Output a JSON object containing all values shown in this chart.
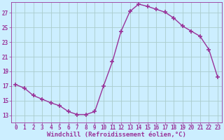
{
  "x": [
    0,
    1,
    2,
    3,
    4,
    5,
    6,
    7,
    8,
    9,
    10,
    11,
    12,
    13,
    14,
    15,
    16,
    17,
    18,
    19,
    20,
    21,
    22,
    23
  ],
  "y": [
    17.2,
    16.7,
    15.7,
    15.2,
    14.7,
    14.3,
    13.5,
    13.1,
    13.1,
    13.5,
    17.0,
    20.3,
    24.5,
    27.2,
    28.2,
    27.9,
    27.5,
    27.1,
    26.3,
    25.2,
    24.5,
    23.8,
    22.0,
    18.2
  ],
  "line_color": "#993399",
  "marker": "+",
  "marker_size": 4,
  "marker_lw": 1.2,
  "line_width": 1.0,
  "bg_color": "#cceeff",
  "grid_color": "#aacccc",
  "xlabel": "Windchill (Refroidissement éolien,°C)",
  "xlim": [
    -0.5,
    23.5
  ],
  "ylim": [
    12.0,
    28.5
  ],
  "yticks": [
    13,
    15,
    17,
    19,
    21,
    23,
    25,
    27
  ],
  "xticks": [
    0,
    1,
    2,
    3,
    4,
    5,
    6,
    7,
    8,
    9,
    10,
    11,
    12,
    13,
    14,
    15,
    16,
    17,
    18,
    19,
    20,
    21,
    22,
    23
  ],
  "axis_color": "#993399",
  "label_fontsize": 6.5,
  "tick_fontsize": 5.5,
  "tick_label_color": "#993399"
}
